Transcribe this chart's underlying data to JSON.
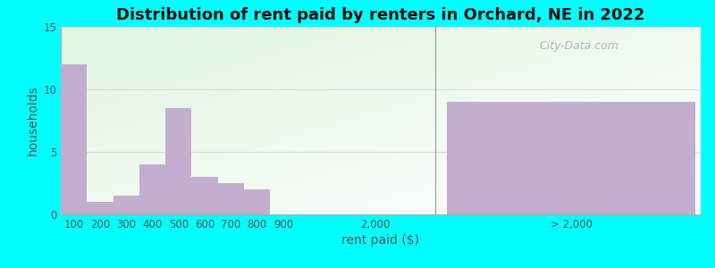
{
  "title": "Distribution of rent paid by renters in Orchard, NE in 2022",
  "xlabel": "rent paid ($)",
  "ylabel": "households",
  "bar_categories": [
    "100",
    "200",
    "300",
    "400",
    "500",
    "600",
    "700",
    "800",
    "900"
  ],
  "bar_values": [
    12,
    1,
    1.5,
    4,
    8.5,
    3,
    2.5,
    2,
    0
  ],
  "bar_color": "#c4aed0",
  "special_label": "> 2,000",
  "special_value": 9,
  "mid_label": "2,000",
  "ylim": [
    0,
    15
  ],
  "yticks": [
    0,
    5,
    10,
    15
  ],
  "outer_bg": "#00ffff",
  "title_fontsize": 13,
  "axis_label_fontsize": 10,
  "tick_label_fontsize": 8.5,
  "watermark": "City-Data.com"
}
